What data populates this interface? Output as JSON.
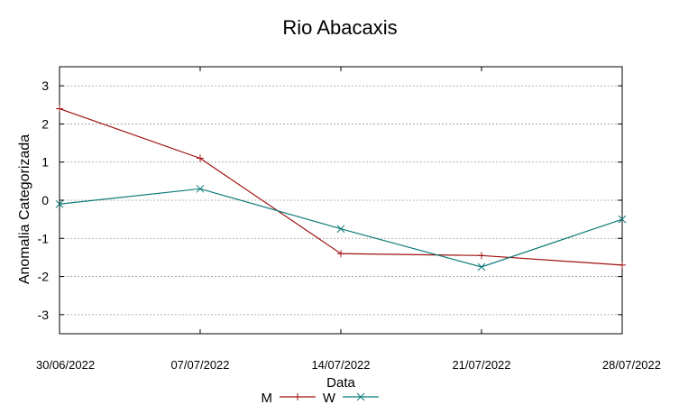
{
  "chart_data": {
    "type": "line",
    "title": "Rio Abacaxis",
    "xlabel": "Data",
    "ylabel": "Anomalia Categorizada",
    "x": [
      "30/06/2022",
      "07/07/2022",
      "14/07/2022",
      "21/07/2022",
      "28/07/2022"
    ],
    "x_ticks": [
      "30/06/2022",
      "07/07/2022",
      "14/07/2022",
      "21/07/2022",
      "28/07/2022"
    ],
    "ylim": [
      -3.5,
      3.5
    ],
    "y_ticks": [
      "3",
      "2",
      "1",
      "0",
      "-1",
      "-2",
      "-3"
    ],
    "y_tick_values": [
      3,
      2,
      1,
      0,
      -1,
      -2,
      -3
    ],
    "grid": true,
    "legend_position": "bottom-center",
    "series": [
      {
        "name": "M",
        "values": [
          2.4,
          1.1,
          -1.4,
          -1.45,
          -1.7
        ],
        "color": "#a01010",
        "marker": "plus"
      },
      {
        "name": "W",
        "values": [
          -0.1,
          0.3,
          -0.75,
          -1.75,
          -0.5
        ],
        "color": "#0f7a7a",
        "marker": "cross"
      }
    ]
  }
}
